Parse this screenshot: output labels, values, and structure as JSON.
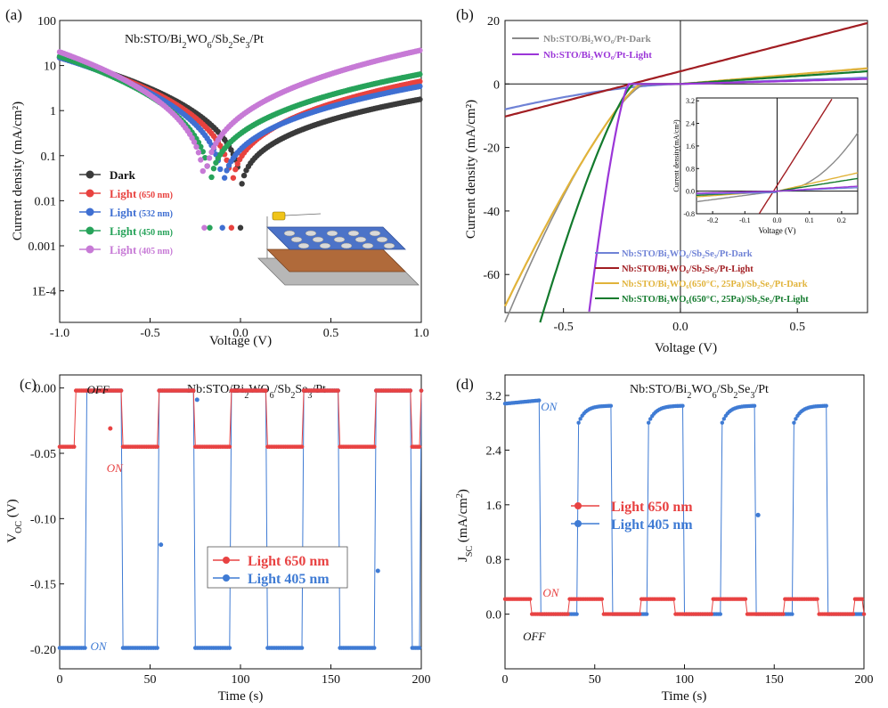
{
  "figure": {
    "panels": [
      "(a)",
      "(b)",
      "(c)",
      "(d)"
    ],
    "colors": {
      "dark": "#3a3a3a",
      "red": "#e8423f",
      "blue": "#3f6fd2",
      "green": "#27a35a",
      "purple": "#c77ad6",
      "b_blue": "#6f82d6",
      "b_red": "#a11d22",
      "b_gold": "#e1b33a",
      "b_green": "#137a2d",
      "b_grey": "#8a8a8a",
      "b_violet": "#9b36d8",
      "c_red": "#e84242",
      "c_blue": "#3f7bd4"
    }
  },
  "chart_data": [
    {
      "id": "a",
      "type": "line",
      "title": "Nb:STO/Bi2WO6/Sb2Se3/Pt",
      "xlabel": "Voltage (V)",
      "ylabel": "Current density (mA/cm²)",
      "xlim": [
        -1.0,
        1.0
      ],
      "ylim_log10": [
        -4.7,
        2
      ],
      "yscale": "log",
      "xticks": [
        "-1.0",
        "-0.5",
        "0.0",
        "0.5",
        "1.0"
      ],
      "yticks": [
        "100",
        "10",
        "1",
        "0.1",
        "0.01",
        "0.001",
        "1E-4"
      ],
      "series": [
        {
          "name": "Dark",
          "wavelength": "",
          "v0": 0.0,
          "j_left": 15,
          "j_right": 1.8,
          "key": "dark"
        },
        {
          "name": "Light",
          "wavelength": "(650 nm)",
          "v0": -0.05,
          "j_left": 15,
          "j_right": 4.5,
          "key": "red"
        },
        {
          "name": "Light",
          "wavelength": "(532 nm)",
          "v0": -0.1,
          "j_left": 15,
          "j_right": 3.5,
          "key": "blue"
        },
        {
          "name": "Light",
          "wavelength": "(450 nm)",
          "v0": -0.17,
          "j_left": 16,
          "j_right": 6.5,
          "key": "green"
        },
        {
          "name": "Light",
          "wavelength": "(405 nm)",
          "v0": -0.2,
          "j_left": 20,
          "j_right": 22,
          "key": "purple"
        }
      ]
    },
    {
      "id": "b",
      "type": "line",
      "xlabel": "Voltage (V)",
      "ylabel": "Current density (mA/cm²)",
      "xlim": [
        -0.75,
        0.8
      ],
      "ylim": [
        -72,
        20
      ],
      "xticks": [
        "-0.5",
        "0.0",
        "0.5"
      ],
      "yticks": [
        "20",
        "0",
        "-20",
        "-40",
        "-60"
      ],
      "legend_top": [
        {
          "label": "Nb:STO/Bi₂WO₆/Pt-Dark",
          "key": "b_grey"
        },
        {
          "label": "Nb:STO/Bi₂WO₆/Pt-Light",
          "key": "b_violet"
        }
      ],
      "legend_bottom": [
        {
          "label": "Nb:STO/Bi₂WO₆/Sb₂Se₃/Pt-Dark",
          "key": "b_blue"
        },
        {
          "label": "Nb:STO/Bi₂WO₆/Sb₂Se₃/Pt-Light",
          "key": "b_red"
        },
        {
          "label": "Nb:STO/Bi₂WO₆(650°C, 25Pa)/Sb₂Se₃/Pt-Dark",
          "key": "b_gold"
        },
        {
          "label": "Nb:STO/Bi₂WO₆(650°C, 25Pa)/Sb₂Se₃/Pt-Light",
          "key": "b_green"
        }
      ],
      "inset": {
        "xlabel": "Voltage (V)",
        "ylabel": "Current density(mA/cm²)",
        "xlim": [
          -0.25,
          0.25
        ],
        "ylim": [
          -0.8,
          3.3
        ],
        "xticks": [
          "-0.2",
          "-0.1",
          "0.0",
          "0.1",
          "0.2"
        ],
        "yticks": [
          "3.2",
          "2.8",
          "2.4",
          "2.0",
          "1.6",
          "1.2",
          "0.8",
          "0.4",
          "0.0",
          "-0.4",
          "-0.8"
        ]
      }
    },
    {
      "id": "c",
      "type": "line",
      "title": "Nb:STO/Bi2WO6/Sb2Se3/Pt",
      "xlabel": "Time (s)",
      "ylabel": "VOC (V)",
      "xlim": [
        0,
        200
      ],
      "ylim": [
        -0.215,
        0.01
      ],
      "xticks": [
        "0",
        "50",
        "100",
        "150",
        "200"
      ],
      "yticks": [
        "0.00",
        "-0.05",
        "-0.10",
        "-0.15",
        "-0.20"
      ],
      "series": [
        {
          "name": "Light 650 nm",
          "key": "c_red",
          "on_level": -0.045,
          "off_level": -0.002,
          "period": 40,
          "first_on": 0
        },
        {
          "name": "Light 405 nm",
          "key": "c_blue",
          "on_level": -0.199,
          "off_level": -0.002,
          "period": 40,
          "first_on": 0
        }
      ],
      "annotations": {
        "off": "OFF",
        "on_red": "ON",
        "on_blue": "ON"
      }
    },
    {
      "id": "d",
      "type": "line",
      "title": "Nb:STO/Bi2WO6/Sb2Se3/Pt",
      "xlabel": "Time (s)",
      "ylabel": "JSC (mA/cm²)",
      "xlim": [
        0,
        200
      ],
      "ylim": [
        -0.8,
        3.5
      ],
      "xticks": [
        "0",
        "50",
        "100",
        "150",
        "200"
      ],
      "yticks": [
        "3.2",
        "2.4",
        "1.6",
        "0.8",
        "0.0"
      ],
      "series": [
        {
          "name": "Light 650 nm",
          "key": "c_red",
          "on_level": 0.22,
          "off_level": 0.0
        },
        {
          "name": "Light 405 nm",
          "key": "c_blue",
          "on_level": 3.05,
          "off_level": 0.0
        }
      ],
      "annotations": {
        "on_blue": "ON",
        "on_red": "ON",
        "off": "OFF"
      }
    }
  ]
}
